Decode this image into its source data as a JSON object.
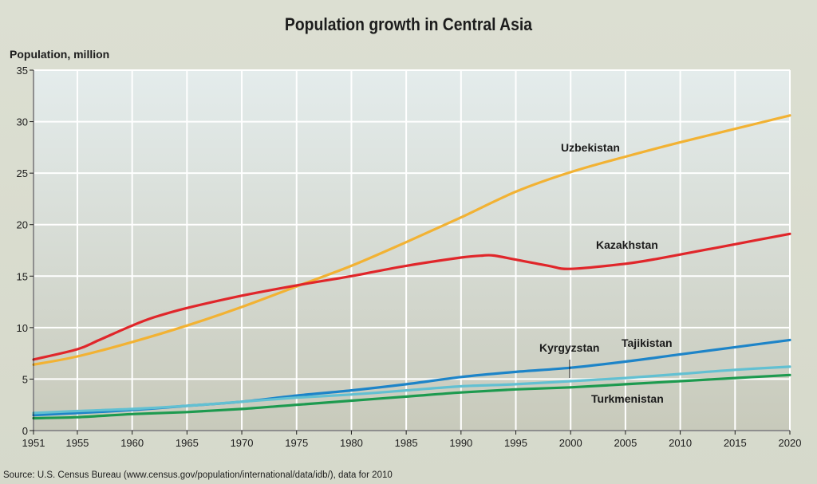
{
  "chart_data": {
    "type": "line",
    "title": "Population growth in Central Asia",
    "ylabel": "Population, million",
    "xlabel": "",
    "source": "Source: U.S.  Census Bureau (www.census.gov/population/international/data/idb/), data for 2010",
    "xlim": [
      1951,
      2020
    ],
    "ylim": [
      0,
      35
    ],
    "xticks": [
      1951,
      1955,
      1960,
      1965,
      1970,
      1975,
      1980,
      1985,
      1990,
      1995,
      2000,
      2005,
      2010,
      2015,
      2020
    ],
    "yticks": [
      0,
      5,
      10,
      15,
      20,
      25,
      30,
      35
    ],
    "grid": true,
    "series": [
      {
        "name": "Uzbekistan",
        "color": "#f2b233",
        "x": [
          1951,
          1955,
          1960,
          1965,
          1970,
          1975,
          1980,
          1985,
          1990,
          1995,
          2000,
          2005,
          2010,
          2015,
          2020
        ],
        "y": [
          6.4,
          7.2,
          8.6,
          10.2,
          12.0,
          14.0,
          16.0,
          18.3,
          20.7,
          23.2,
          25.1,
          26.6,
          28.0,
          29.3,
          30.6
        ]
      },
      {
        "name": "Kazakhstan",
        "color": "#e0262a",
        "x": [
          1951,
          1955,
          1957,
          1960,
          1962,
          1965,
          1970,
          1975,
          1980,
          1985,
          1990,
          1992,
          1993,
          1995,
          1998,
          2000,
          2005,
          2008,
          2010,
          2015,
          2020
        ],
        "y": [
          6.9,
          7.9,
          8.8,
          10.2,
          11.0,
          11.9,
          13.1,
          14.1,
          15.0,
          16.0,
          16.8,
          17.0,
          17.0,
          16.6,
          16.0,
          15.7,
          16.2,
          16.7,
          17.1,
          18.1,
          19.1
        ]
      },
      {
        "name": "Tajikistan",
        "color": "#1d84c8",
        "x": [
          1951,
          1955,
          1960,
          1965,
          1970,
          1975,
          1980,
          1985,
          1990,
          1995,
          2000,
          2005,
          2010,
          2015,
          2020
        ],
        "y": [
          1.5,
          1.7,
          2.0,
          2.4,
          2.8,
          3.4,
          3.9,
          4.5,
          5.2,
          5.7,
          6.1,
          6.7,
          7.4,
          8.1,
          8.8
        ]
      },
      {
        "name": "Kyrgyzstan",
        "color": "#62c0d2",
        "x": [
          1951,
          1955,
          1960,
          1965,
          1970,
          1975,
          1980,
          1985,
          1990,
          1995,
          2000,
          2005,
          2010,
          2015,
          2020
        ],
        "y": [
          1.7,
          1.9,
          2.1,
          2.4,
          2.8,
          3.2,
          3.5,
          3.9,
          4.3,
          4.5,
          4.8,
          5.1,
          5.5,
          5.9,
          6.2
        ]
      },
      {
        "name": "Turkmenistan",
        "color": "#1d9a4f",
        "x": [
          1951,
          1955,
          1960,
          1965,
          1970,
          1975,
          1980,
          1985,
          1990,
          1995,
          2000,
          2005,
          2010,
          2015,
          2020
        ],
        "y": [
          1.2,
          1.3,
          1.6,
          1.8,
          2.1,
          2.5,
          2.9,
          3.3,
          3.7,
          4.0,
          4.2,
          4.5,
          4.8,
          5.1,
          5.4
        ]
      }
    ]
  }
}
